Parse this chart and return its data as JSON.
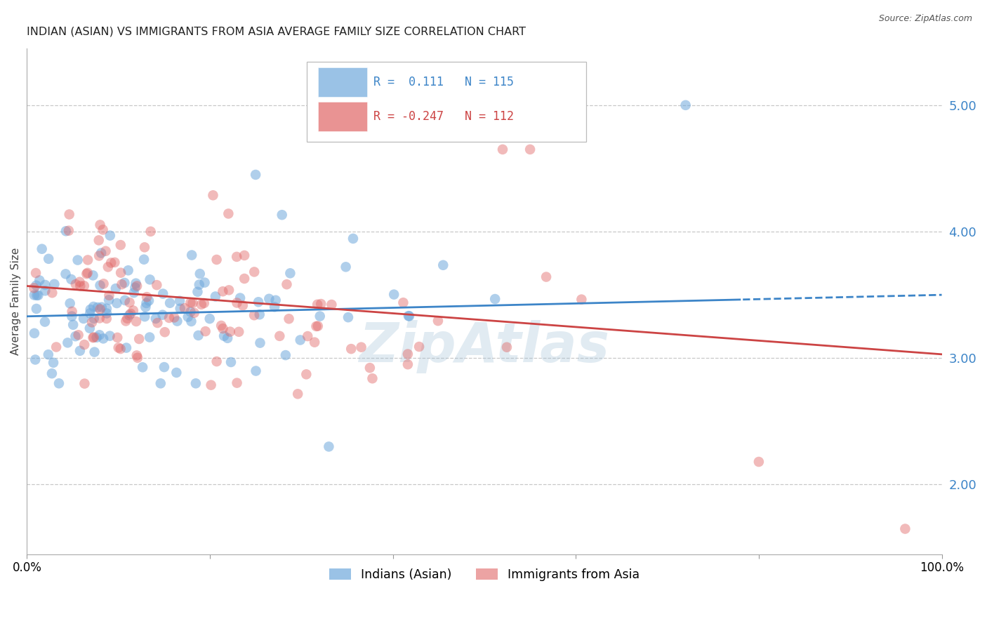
{
  "title": "INDIAN (ASIAN) VS IMMIGRANTS FROM ASIA AVERAGE FAMILY SIZE CORRELATION CHART",
  "source": "Source: ZipAtlas.com",
  "ylabel": "Average Family Size",
  "right_yticks": [
    2.0,
    3.0,
    4.0,
    5.0
  ],
  "xlim": [
    0.0,
    100.0
  ],
  "ylim": [
    1.45,
    5.45
  ],
  "blue_r": 0.111,
  "blue_n": 115,
  "pink_r": -0.247,
  "pink_n": 112,
  "blue_color": "#6fa8dc",
  "pink_color": "#e06666",
  "blue_line_color": "#3d85c8",
  "pink_line_color": "#cc4444",
  "background_color": "#ffffff",
  "grid_color": "#bbbbbb",
  "watermark": "ZipAtlas",
  "watermark_color": "#9dbdd4",
  "title_fontsize": 11.5,
  "axis_label_fontsize": 11,
  "tick_fontsize": 12,
  "legend_fontsize": 12
}
